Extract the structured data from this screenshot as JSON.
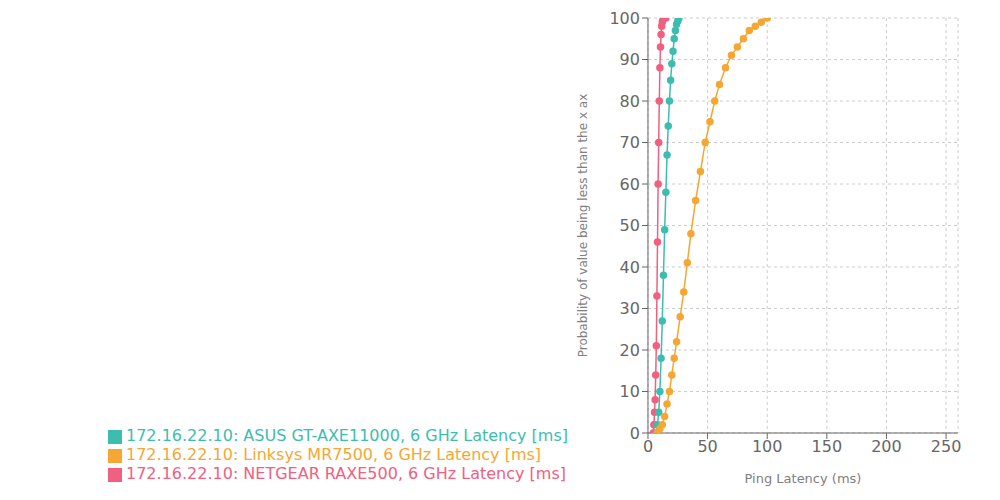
{
  "chart_data": {
    "type": "line",
    "xlabel": "Ping Latency (ms)",
    "ylabel": "Probability of value being less than the x ax",
    "xlim": [
      0,
      260
    ],
    "ylim": [
      0,
      100
    ],
    "xticks": [
      0,
      50,
      100,
      150,
      200,
      250
    ],
    "yticks": [
      0,
      10,
      20,
      30,
      40,
      50,
      60,
      70,
      80,
      90,
      100
    ],
    "grid": true,
    "legend": "bottom",
    "marker": "circle",
    "series": [
      {
        "name": "172.16.22.10: NETGEAR RAXE500, 6 GHz Latency [ms]",
        "color": "#F06080",
        "x": [
          4.5,
          5,
          5.5,
          6,
          6.5,
          7,
          7.5,
          8,
          8.5,
          9,
          9.5,
          10,
          10.5,
          11,
          11.5,
          12,
          12.5,
          13,
          14,
          15
        ],
        "values": [
          0,
          2,
          5,
          8,
          14,
          21,
          33,
          46,
          60,
          70,
          80,
          88,
          93,
          96,
          98,
          99,
          99.5,
          99.8,
          100,
          100
        ]
      },
      {
        "name": "172.16.22.10: ASUS GT-AXE11000, 6 GHz Latency [ms]",
        "color": "#3DBDB0",
        "x": [
          7,
          8,
          9,
          10,
          11,
          12,
          13,
          14,
          15,
          16,
          17,
          18,
          19,
          20,
          21,
          22,
          23,
          24,
          25,
          26
        ],
        "values": [
          0,
          2,
          5,
          10,
          18,
          27,
          38,
          49,
          58,
          67,
          74,
          80,
          85,
          89,
          92,
          95,
          97,
          98.5,
          99.3,
          100
        ]
      },
      {
        "name": "172.16.22.10: Linksys MR7500, 6 GHz Latency [ms]",
        "color": "#F5A733",
        "x": [
          8,
          10,
          12,
          14,
          16,
          18,
          20,
          22,
          24,
          27,
          30,
          33,
          36,
          40,
          44,
          48,
          52,
          56,
          60,
          65,
          70,
          75,
          80,
          85,
          90,
          95,
          100
        ],
        "values": [
          0,
          1,
          2,
          4,
          7,
          10,
          14,
          18,
          22,
          28,
          34,
          41,
          48,
          56,
          63,
          70,
          75,
          80,
          84,
          88,
          91,
          93,
          95,
          97,
          98,
          99,
          100
        ]
      }
    ]
  }
}
